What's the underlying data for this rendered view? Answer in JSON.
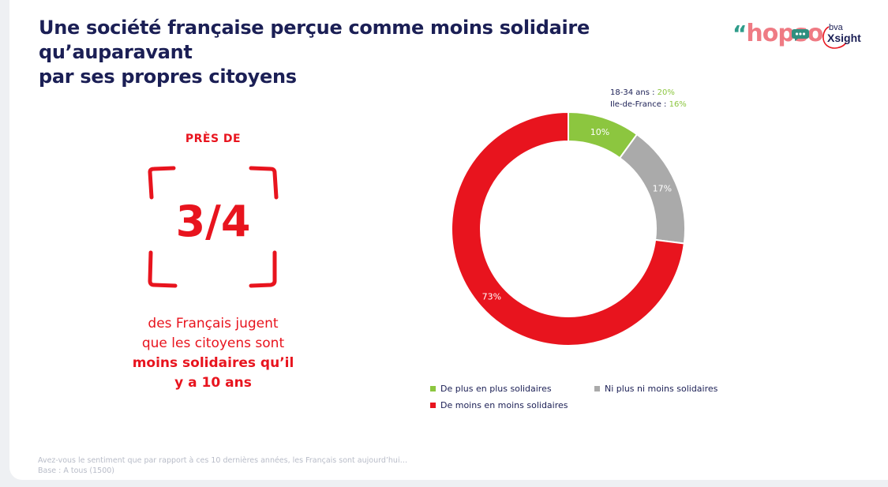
{
  "title": {
    "line1": "Une société française perçue comme moins solidaire qu’auparavant",
    "line2": "par ses propres citoyens"
  },
  "logos": {
    "hopso": "hopso",
    "bva_top": "bva",
    "bva_bottom": "Xsight"
  },
  "highlight": {
    "prefix": "PRÈS DE",
    "figure": "3/4",
    "text_line1": "des Français jugent",
    "text_line2": "que les citoyens sont",
    "text_bold1": "moins solidaires qu’il",
    "text_bold2": "y a 10 ans"
  },
  "callout": {
    "line1_label": "18-34 ans : ",
    "line1_value": "20%",
    "line2_label": "Ile-de-France : ",
    "line2_value": "16%"
  },
  "chart_data": {
    "type": "pie",
    "variant": "donut",
    "slices": [
      {
        "label": "De plus en plus solidaires",
        "value": 10,
        "display": "10%",
        "color": "#8cc63f"
      },
      {
        "label": "Ni plus ni moins solidaires",
        "value": 17,
        "display": "17%",
        "color": "#aaaaaa"
      },
      {
        "label": "De moins en moins solidaires",
        "value": 73,
        "display": "73%",
        "color": "#e8141e"
      }
    ],
    "legend_position": "bottom"
  },
  "footnote": {
    "question": "Avez-vous le sentiment que par rapport à ces 10 dernières années, les Français sont aujourd’hui…",
    "base": "Base : A tous (1500)"
  }
}
